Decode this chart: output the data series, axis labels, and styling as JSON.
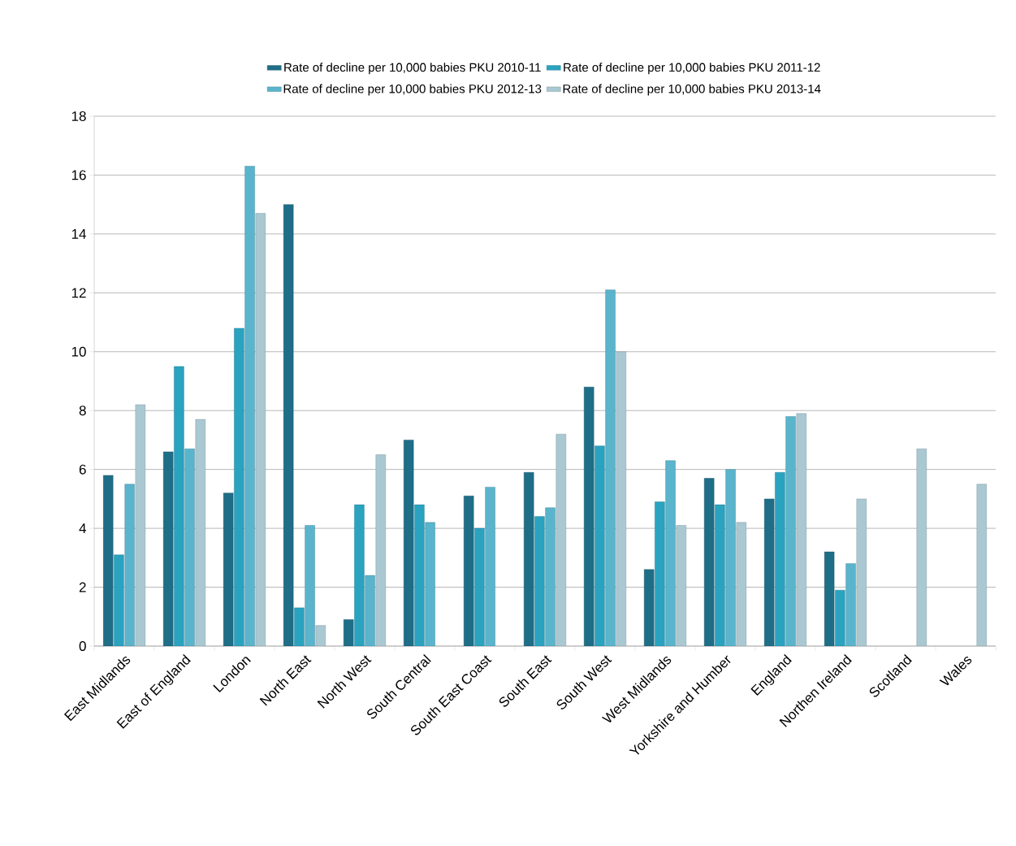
{
  "chart_data": {
    "type": "bar",
    "categories": [
      "East Midlands",
      "East of England",
      "London",
      "North East",
      "North West",
      "South Central",
      "South East Coast",
      "South East",
      "South West",
      "West Midlands",
      "Yorkshire and Humber",
      "England",
      "Northen Ireland",
      "Scotland",
      "Wales"
    ],
    "series": [
      {
        "name": "Rate of decline per 10,000 babies PKU 2010-11",
        "color": "#1f6e87",
        "values": [
          5.8,
          6.6,
          5.2,
          15.0,
          0.9,
          7.0,
          5.1,
          5.9,
          8.8,
          2.6,
          5.7,
          5.0,
          3.2,
          null,
          null
        ]
      },
      {
        "name": "Rate of decline per 10,000 babies PKU 2011-12",
        "color": "#2aa3c0",
        "values": [
          3.1,
          9.5,
          10.8,
          1.3,
          4.8,
          4.8,
          4.0,
          4.4,
          6.8,
          4.9,
          4.8,
          5.9,
          1.9,
          null,
          null
        ]
      },
      {
        "name": "Rate of decline per 10,000 babies PKU 2012-13",
        "color": "#5ab4cc",
        "values": [
          5.5,
          6.7,
          16.3,
          4.1,
          2.4,
          4.2,
          5.4,
          4.7,
          12.1,
          6.3,
          6.0,
          7.8,
          2.8,
          null,
          null
        ]
      },
      {
        "name": "Rate of decline per 10,000 babies PKU 2013-14",
        "color": "#a9c8d2",
        "values": [
          8.2,
          7.7,
          14.7,
          0.7,
          6.5,
          null,
          null,
          7.2,
          10.0,
          4.1,
          4.2,
          7.9,
          5.0,
          6.7,
          5.5
        ]
      }
    ],
    "ylim": [
      0,
      18
    ],
    "yticks": [
      0,
      2,
      4,
      6,
      8,
      10,
      12,
      14,
      16,
      18
    ],
    "grid": "y",
    "legend": "top"
  }
}
